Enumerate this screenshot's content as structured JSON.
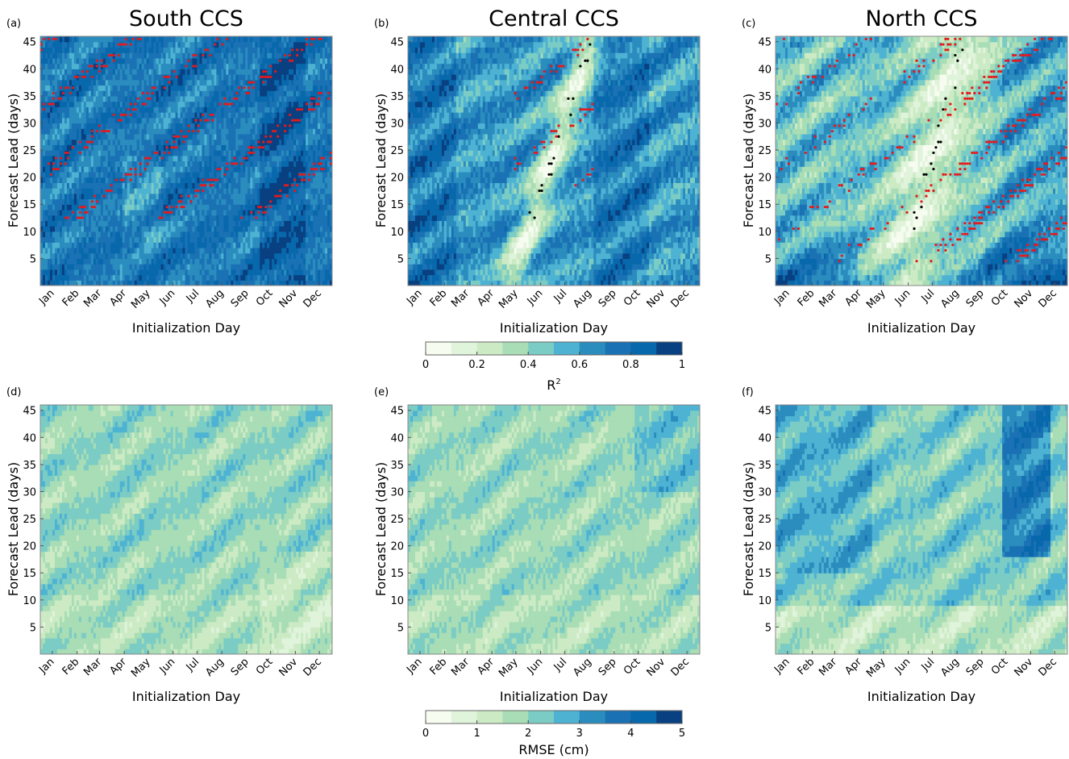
{
  "chart_data": [
    {
      "panel_label": "(a)",
      "title": "South CCS",
      "metric": "r2",
      "region": "south",
      "type": "heatmap",
      "xlabel": "Initialization Day",
      "ylabel": "Forecast Lead (days)",
      "xticks": [
        "Jan",
        "Feb",
        "Mar",
        "Apr",
        "May",
        "Jun",
        "Jul",
        "Aug",
        "Sep",
        "Oct",
        "Nov",
        "Dec"
      ],
      "yticks": [
        5,
        10,
        15,
        20,
        25,
        30,
        35,
        40,
        45
      ],
      "ylim": [
        0,
        46
      ]
    },
    {
      "panel_label": "(b)",
      "title": "Central CCS",
      "metric": "r2",
      "region": "central",
      "type": "heatmap",
      "xlabel": "Initialization Day",
      "ylabel": "Forecast Lead (days)",
      "xticks": [
        "Jan",
        "Feb",
        "Mar",
        "Apr",
        "May",
        "Jun",
        "Jul",
        "Aug",
        "Sep",
        "Oct",
        "Nov",
        "Dec"
      ],
      "yticks": [
        5,
        10,
        15,
        20,
        25,
        30,
        35,
        40,
        45
      ],
      "ylim": [
        0,
        46
      ]
    },
    {
      "panel_label": "(c)",
      "title": "North CCS",
      "metric": "r2",
      "region": "north",
      "type": "heatmap",
      "xlabel": "Initialization Day",
      "ylabel": "Forecast Lead (days)",
      "xticks": [
        "Jan",
        "Feb",
        "Mar",
        "Apr",
        "May",
        "Jun",
        "Jul",
        "Aug",
        "Sep",
        "Oct",
        "Nov",
        "Dec"
      ],
      "yticks": [
        5,
        10,
        15,
        20,
        25,
        30,
        35,
        40,
        45
      ],
      "ylim": [
        0,
        46
      ]
    },
    {
      "panel_label": "(d)",
      "title": "",
      "metric": "rmse",
      "region": "south",
      "type": "heatmap",
      "xlabel": "Initialization Day",
      "ylabel": "Forecast Lead (days)",
      "xticks": [
        "Jan",
        "Feb",
        "Mar",
        "Apr",
        "May",
        "Jun",
        "Jul",
        "Aug",
        "Sep",
        "Oct",
        "Nov",
        "Dec"
      ],
      "yticks": [
        5,
        10,
        15,
        20,
        25,
        30,
        35,
        40,
        45
      ],
      "ylim": [
        0,
        46
      ]
    },
    {
      "panel_label": "(e)",
      "title": "",
      "metric": "rmse",
      "region": "central",
      "type": "heatmap",
      "xlabel": "Initialization Day",
      "ylabel": "Forecast Lead (days)",
      "xticks": [
        "Jan",
        "Feb",
        "Mar",
        "Apr",
        "May",
        "Jun",
        "Jul",
        "Aug",
        "Sep",
        "Oct",
        "Nov",
        "Dec"
      ],
      "yticks": [
        5,
        10,
        15,
        20,
        25,
        30,
        35,
        40,
        45
      ],
      "ylim": [
        0,
        46
      ]
    },
    {
      "panel_label": "(f)",
      "title": "",
      "metric": "rmse",
      "region": "north",
      "type": "heatmap",
      "xlabel": "Initialization Day",
      "ylabel": "Forecast Lead (days)",
      "xticks": [
        "Jan",
        "Feb",
        "Mar",
        "Apr",
        "May",
        "Jun",
        "Jul",
        "Aug",
        "Sep",
        "Oct",
        "Nov",
        "Dec"
      ],
      "yticks": [
        5,
        10,
        15,
        20,
        25,
        30,
        35,
        40,
        45
      ],
      "ylim": [
        0,
        46
      ]
    }
  ],
  "colorbars": {
    "r2": {
      "ticks": [
        "0",
        "0.2",
        "0.4",
        "0.6",
        "0.8",
        "1"
      ],
      "range": [
        0,
        1
      ],
      "label": "R",
      "label_sup": "2"
    },
    "rmse": {
      "ticks": [
        "0",
        "1",
        "2",
        "3",
        "4",
        "5"
      ],
      "range": [
        0,
        5
      ],
      "label": "RMSE (cm)",
      "label_sup": ""
    }
  },
  "colormap": [
    "#f7fcf0",
    "#e0f3db",
    "#ccebc5",
    "#a8ddb5",
    "#7bccc4",
    "#4eb3d3",
    "#2b8cbe",
    "#1a72b4",
    "#0868ac",
    "#084081"
  ],
  "marker_colors": {
    "red": "#e41a1c",
    "black": "#000000"
  }
}
